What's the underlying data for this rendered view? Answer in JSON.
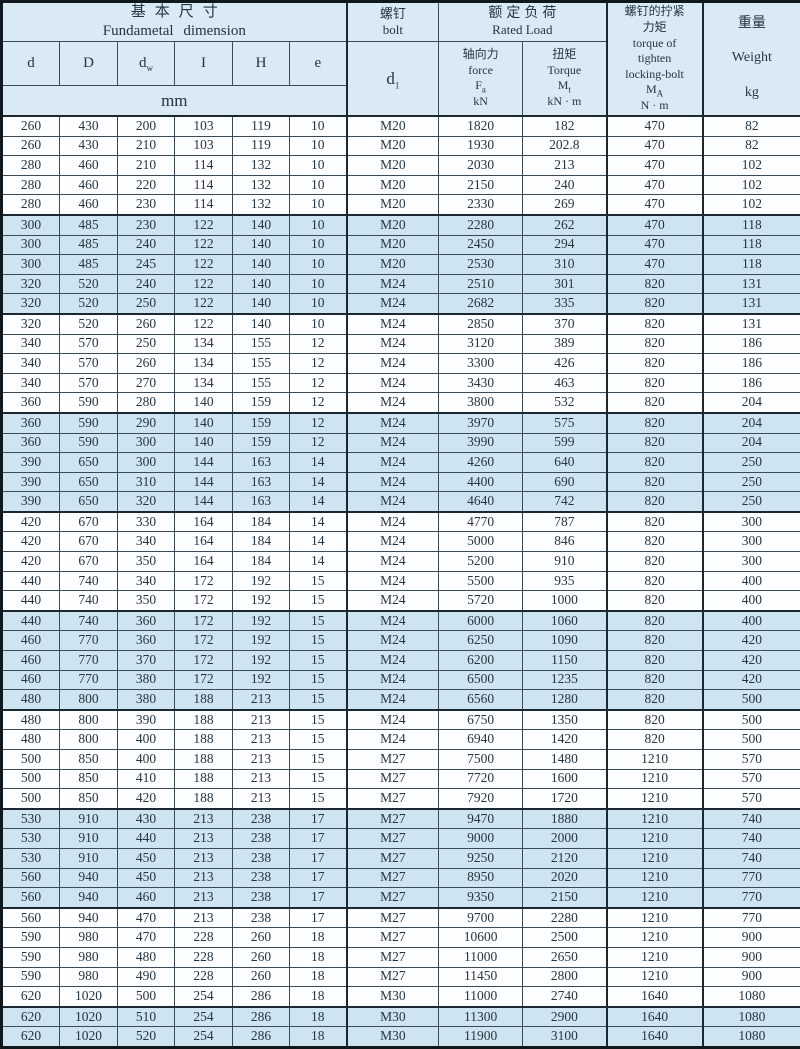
{
  "colors": {
    "page_background": "#d9eaf5",
    "band_row": "#cfe4f1",
    "white_row": "#fdfeff",
    "grid_line": "#3a4a57",
    "thick_line": "#1c2831"
  },
  "table": {
    "header": {
      "fundamental": {
        "zh": "基本尺寸",
        "en": "Fundametal dimension"
      },
      "bolt": {
        "zh": "螺钉",
        "en": "bolt"
      },
      "bolt_symbol": {
        "main": "d",
        "sub": "1"
      },
      "rated_load": {
        "zh": "额定负荷",
        "en": "Rated Load"
      },
      "axial": {
        "zh": "轴向力",
        "en": "force",
        "symbol": {
          "main": "F",
          "sub": "a"
        },
        "unit": "kN"
      },
      "torque": {
        "zh": "扭矩",
        "en": "Torque",
        "symbol": {
          "main": "M",
          "sub": "t"
        },
        "unit": "kN · m"
      },
      "locking_torque": {
        "line1": "螺钉的拧紧",
        "line2": "力矩",
        "line3": "torque of",
        "line4": "tighten",
        "line5": "locking-bolt",
        "symbol": {
          "main": "M",
          "sub": "A"
        },
        "unit": "N · m"
      },
      "weight": {
        "zh": "重量",
        "en": "Weight",
        "unit": "kg"
      },
      "dim_columns": [
        {
          "main": "d",
          "sub": ""
        },
        {
          "main": "D",
          "sub": ""
        },
        {
          "main": "d",
          "sub": "w"
        },
        {
          "main": "I",
          "sub": ""
        },
        {
          "main": "H",
          "sub": ""
        },
        {
          "main": "e",
          "sub": ""
        }
      ],
      "dim_unit": "mm"
    },
    "rows": [
      [
        "260",
        "430",
        "200",
        "103",
        "119",
        "10",
        "M20",
        "1820",
        "182",
        "470",
        "82"
      ],
      [
        "260",
        "430",
        "210",
        "103",
        "119",
        "10",
        "M20",
        "1930",
        "202.8",
        "470",
        "82"
      ],
      [
        "280",
        "460",
        "210",
        "114",
        "132",
        "10",
        "M20",
        "2030",
        "213",
        "470",
        "102"
      ],
      [
        "280",
        "460",
        "220",
        "114",
        "132",
        "10",
        "M20",
        "2150",
        "240",
        "470",
        "102"
      ],
      [
        "280",
        "460",
        "230",
        "114",
        "132",
        "10",
        "M20",
        "2330",
        "269",
        "470",
        "102"
      ],
      [
        "300",
        "485",
        "230",
        "122",
        "140",
        "10",
        "M20",
        "2280",
        "262",
        "470",
        "118"
      ],
      [
        "300",
        "485",
        "240",
        "122",
        "140",
        "10",
        "M20",
        "2450",
        "294",
        "470",
        "118"
      ],
      [
        "300",
        "485",
        "245",
        "122",
        "140",
        "10",
        "M20",
        "2530",
        "310",
        "470",
        "118"
      ],
      [
        "320",
        "520",
        "240",
        "122",
        "140",
        "10",
        "M24",
        "2510",
        "301",
        "820",
        "131"
      ],
      [
        "320",
        "520",
        "250",
        "122",
        "140",
        "10",
        "M24",
        "2682",
        "335",
        "820",
        "131"
      ],
      [
        "320",
        "520",
        "260",
        "122",
        "140",
        "10",
        "M24",
        "2850",
        "370",
        "820",
        "131"
      ],
      [
        "340",
        "570",
        "250",
        "134",
        "155",
        "12",
        "M24",
        "3120",
        "389",
        "820",
        "186"
      ],
      [
        "340",
        "570",
        "260",
        "134",
        "155",
        "12",
        "M24",
        "3300",
        "426",
        "820",
        "186"
      ],
      [
        "340",
        "570",
        "270",
        "134",
        "155",
        "12",
        "M24",
        "3430",
        "463",
        "820",
        "186"
      ],
      [
        "360",
        "590",
        "280",
        "140",
        "159",
        "12",
        "M24",
        "3800",
        "532",
        "820",
        "204"
      ],
      [
        "360",
        "590",
        "290",
        "140",
        "159",
        "12",
        "M24",
        "3970",
        "575",
        "820",
        "204"
      ],
      [
        "360",
        "590",
        "300",
        "140",
        "159",
        "12",
        "M24",
        "3990",
        "599",
        "820",
        "204"
      ],
      [
        "390",
        "650",
        "300",
        "144",
        "163",
        "14",
        "M24",
        "4260",
        "640",
        "820",
        "250"
      ],
      [
        "390",
        "650",
        "310",
        "144",
        "163",
        "14",
        "M24",
        "4400",
        "690",
        "820",
        "250"
      ],
      [
        "390",
        "650",
        "320",
        "144",
        "163",
        "14",
        "M24",
        "4640",
        "742",
        "820",
        "250"
      ],
      [
        "420",
        "670",
        "330",
        "164",
        "184",
        "14",
        "M24",
        "4770",
        "787",
        "820",
        "300"
      ],
      [
        "420",
        "670",
        "340",
        "164",
        "184",
        "14",
        "M24",
        "5000",
        "846",
        "820",
        "300"
      ],
      [
        "420",
        "670",
        "350",
        "164",
        "184",
        "14",
        "M24",
        "5200",
        "910",
        "820",
        "300"
      ],
      [
        "440",
        "740",
        "340",
        "172",
        "192",
        "15",
        "M24",
        "5500",
        "935",
        "820",
        "400"
      ],
      [
        "440",
        "740",
        "350",
        "172",
        "192",
        "15",
        "M24",
        "5720",
        "1000",
        "820",
        "400"
      ],
      [
        "440",
        "740",
        "360",
        "172",
        "192",
        "15",
        "M24",
        "6000",
        "1060",
        "820",
        "400"
      ],
      [
        "460",
        "770",
        "360",
        "172",
        "192",
        "15",
        "M24",
        "6250",
        "1090",
        "820",
        "420"
      ],
      [
        "460",
        "770",
        "370",
        "172",
        "192",
        "15",
        "M24",
        "6200",
        "1150",
        "820",
        "420"
      ],
      [
        "460",
        "770",
        "380",
        "172",
        "192",
        "15",
        "M24",
        "6500",
        "1235",
        "820",
        "420"
      ],
      [
        "480",
        "800",
        "380",
        "188",
        "213",
        "15",
        "M24",
        "6560",
        "1280",
        "820",
        "500"
      ],
      [
        "480",
        "800",
        "390",
        "188",
        "213",
        "15",
        "M24",
        "6750",
        "1350",
        "820",
        "500"
      ],
      [
        "480",
        "800",
        "400",
        "188",
        "213",
        "15",
        "M24",
        "6940",
        "1420",
        "820",
        "500"
      ],
      [
        "500",
        "850",
        "400",
        "188",
        "213",
        "15",
        "M27",
        "7500",
        "1480",
        "1210",
        "570"
      ],
      [
        "500",
        "850",
        "410",
        "188",
        "213",
        "15",
        "M27",
        "7720",
        "1600",
        "1210",
        "570"
      ],
      [
        "500",
        "850",
        "420",
        "188",
        "213",
        "15",
        "M27",
        "7920",
        "1720",
        "1210",
        "570"
      ],
      [
        "530",
        "910",
        "430",
        "213",
        "238",
        "17",
        "M27",
        "9470",
        "1880",
        "1210",
        "740"
      ],
      [
        "530",
        "910",
        "440",
        "213",
        "238",
        "17",
        "M27",
        "9000",
        "2000",
        "1210",
        "740"
      ],
      [
        "530",
        "910",
        "450",
        "213",
        "238",
        "17",
        "M27",
        "9250",
        "2120",
        "1210",
        "740"
      ],
      [
        "560",
        "940",
        "450",
        "213",
        "238",
        "17",
        "M27",
        "8950",
        "2020",
        "1210",
        "770"
      ],
      [
        "560",
        "940",
        "460",
        "213",
        "238",
        "17",
        "M27",
        "9350",
        "2150",
        "1210",
        "770"
      ],
      [
        "560",
        "940",
        "470",
        "213",
        "238",
        "17",
        "M27",
        "9700",
        "2280",
        "1210",
        "770"
      ],
      [
        "590",
        "980",
        "470",
        "228",
        "260",
        "18",
        "M27",
        "10600",
        "2500",
        "1210",
        "900"
      ],
      [
        "590",
        "980",
        "480",
        "228",
        "260",
        "18",
        "M27",
        "11000",
        "2650",
        "1210",
        "900"
      ],
      [
        "590",
        "980",
        "490",
        "228",
        "260",
        "18",
        "M27",
        "11450",
        "2800",
        "1210",
        "900"
      ],
      [
        "620",
        "1020",
        "500",
        "254",
        "286",
        "18",
        "M30",
        "11000",
        "2740",
        "1640",
        "1080"
      ],
      [
        "620",
        "1020",
        "510",
        "254",
        "286",
        "18",
        "M30",
        "11300",
        "2900",
        "1640",
        "1080"
      ],
      [
        "620",
        "1020",
        "520",
        "254",
        "286",
        "18",
        "M30",
        "11900",
        "3100",
        "1640",
        "1080"
      ]
    ]
  }
}
